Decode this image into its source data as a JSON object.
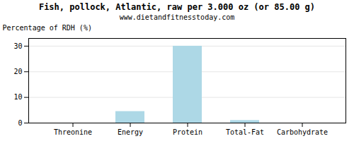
{
  "chart_data": {
    "type": "bar",
    "title": "Fish, pollock, Atlantic, raw per 3.000 oz (or 85.00 g)",
    "subtitle": "www.dietandfitnesstoday.com",
    "categories": [
      "Threonine",
      "Energy",
      "Protein",
      "Total-Fat",
      "Carbohydrate"
    ],
    "values": [
      0,
      4.5,
      30,
      1,
      0
    ],
    "color": "#add8e6",
    "ylabel": "Percentage of RDH (%)",
    "ylim": [
      0,
      33
    ],
    "yticks": [
      0,
      10,
      20,
      30
    ],
    "grid": true
  }
}
